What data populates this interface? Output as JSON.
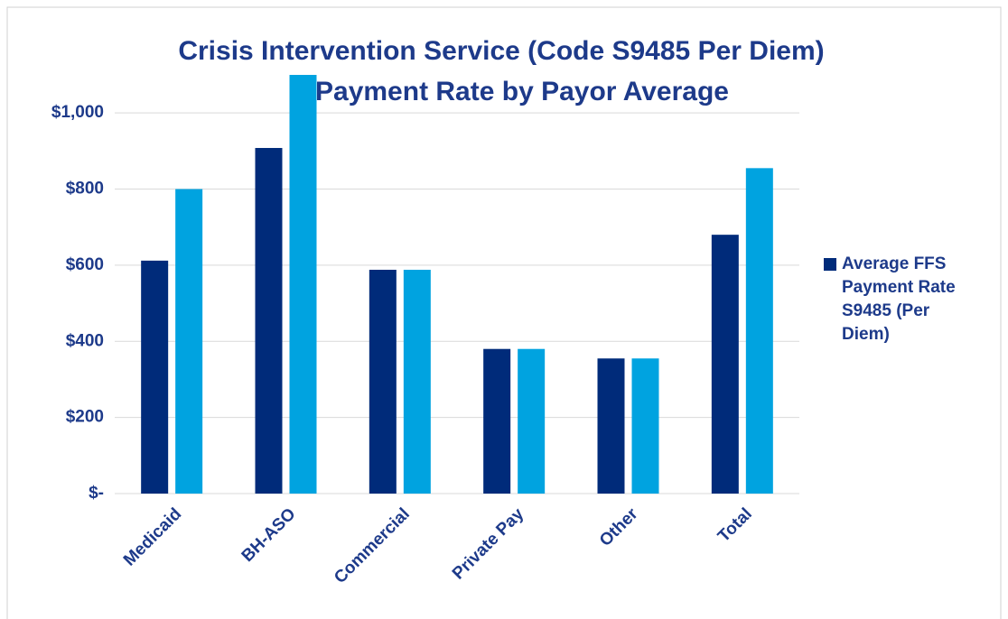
{
  "chart_data": {
    "type": "bar",
    "title": [
      "Crisis Intervention Service (Code S9485 Per Diem)",
      "Payment Rate by Payor Average"
    ],
    "categories": [
      "Medicaid",
      "BH-ASO",
      "Commercial",
      "Private Pay",
      "Other",
      "Total"
    ],
    "series": [
      {
        "name": "Average FFS Payment Rate S9485 (Per Diem)",
        "color": "#002b7a",
        "values": [
          612,
          908,
          588,
          380,
          355,
          680
        ]
      },
      {
        "color": "#00a3e0",
        "values": [
          800,
          1100,
          588,
          380,
          355,
          855
        ]
      }
    ],
    "ylim": [
      0,
      1100
    ],
    "yticks": [
      {
        "value": 0,
        "label": "$-"
      },
      {
        "value": 200,
        "label": "$200"
      },
      {
        "value": 400,
        "label": "$400"
      },
      {
        "value": 600,
        "label": "$600"
      },
      {
        "value": 800,
        "label": "$800"
      },
      {
        "value": 1000,
        "label": "$1,000"
      }
    ],
    "grid": true,
    "legend": "right"
  }
}
